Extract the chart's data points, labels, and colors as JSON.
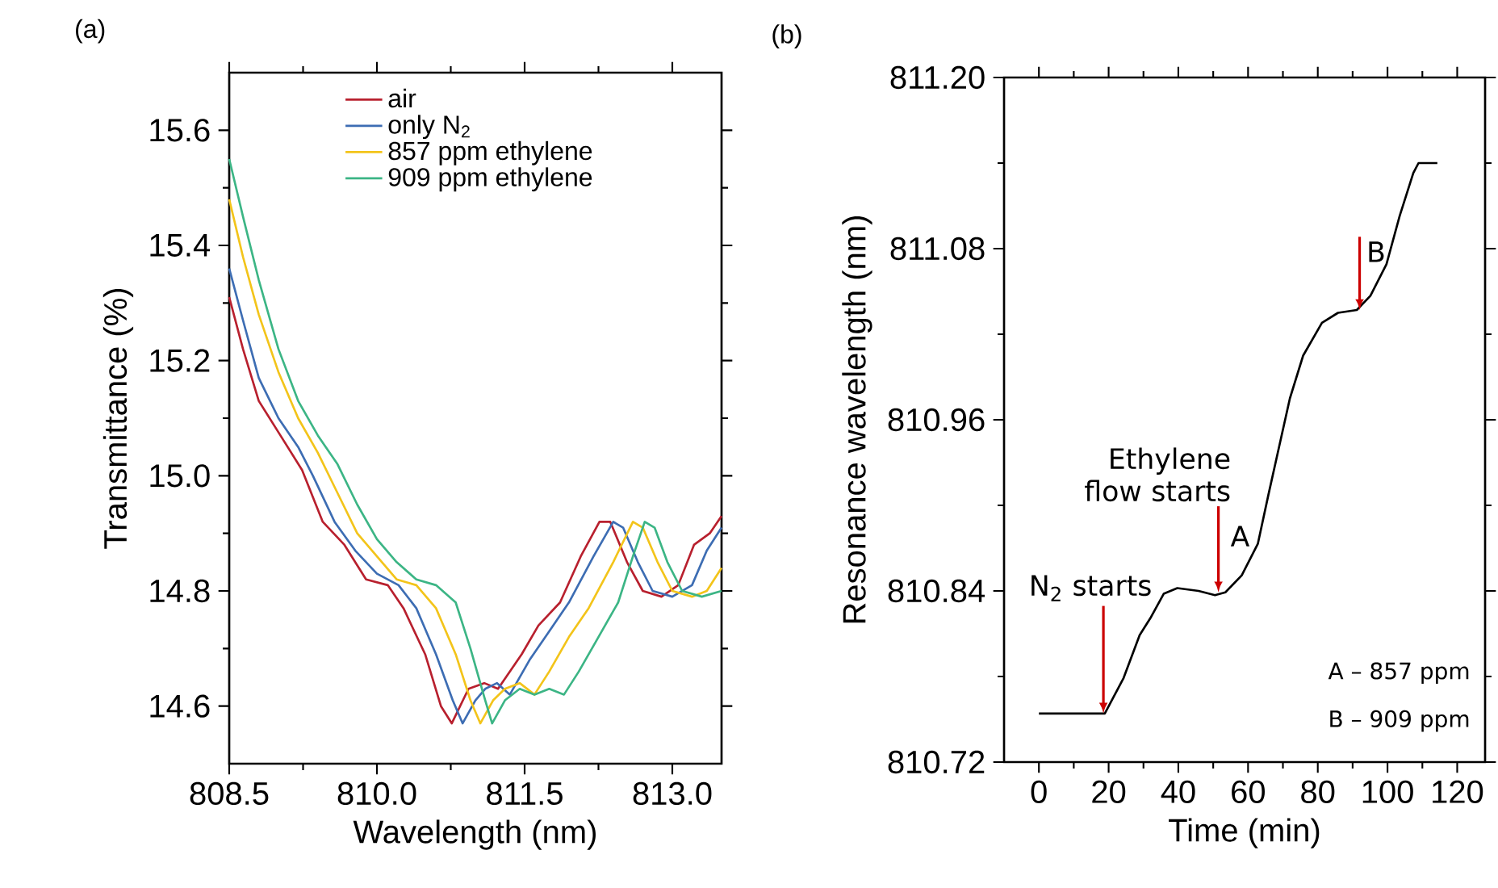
{
  "chart_data": [
    {
      "type": "line",
      "xlabel": "Wavelength (nm)",
      "ylabel": "Transmittance (%)",
      "legend": "top left",
      "xlim": [
        808.5,
        813.5
      ],
      "ylim": [
        14.5,
        15.7
      ],
      "xticks": [
        808.5,
        {
          "value": 810,
          "label": "810.0"
        },
        811.5,
        {
          "value": 813,
          "label": "813.0"
        }
      ],
      "yticks": [
        14.6,
        14.8,
        {
          "value": 15,
          "label": "15.0"
        },
        15.2,
        15.4,
        15.6
      ],
      "annotations": [
        "(a)"
      ],
      "series": [
        {
          "name": "air",
          "color": "#b8202e",
          "x": [
            808.5,
            808.64,
            808.8,
            809.02,
            809.24,
            809.45,
            809.67,
            809.89,
            810.11,
            810.27,
            810.49,
            810.65,
            810.76,
            810.93,
            811.09,
            811.23,
            811.47,
            811.64,
            811.86,
            812.07,
            812.26,
            812.37,
            812.54,
            812.7,
            812.89,
            813.06,
            813.22,
            813.38,
            813.5
          ],
          "values": [
            15.31,
            15.22,
            15.13,
            15.07,
            15.01,
            14.92,
            14.88,
            14.82,
            14.81,
            14.77,
            14.69,
            14.6,
            14.57,
            14.63,
            14.64,
            14.63,
            14.69,
            14.74,
            14.78,
            14.86,
            14.92,
            14.92,
            14.85,
            14.8,
            14.79,
            14.81,
            14.88,
            14.9,
            14.93
          ]
        },
        {
          "name": "only N$_{2}$",
          "color": "#3d6db3",
          "x": [
            808.5,
            808.64,
            808.8,
            809.0,
            809.2,
            809.35,
            809.57,
            809.78,
            810.0,
            810.22,
            810.4,
            810.6,
            810.77,
            810.87,
            811.0,
            811.1,
            811.22,
            811.35,
            811.55,
            811.75,
            811.95,
            812.2,
            812.4,
            812.5,
            812.65,
            812.8,
            813.0,
            813.2,
            813.35,
            813.5
          ],
          "values": [
            15.36,
            15.27,
            15.17,
            15.1,
            15.05,
            15.0,
            14.92,
            14.87,
            14.83,
            14.81,
            14.77,
            14.69,
            14.61,
            14.57,
            14.61,
            14.63,
            14.64,
            14.62,
            14.68,
            14.73,
            14.78,
            14.86,
            14.92,
            14.91,
            14.85,
            14.8,
            14.79,
            14.81,
            14.87,
            14.91
          ]
        },
        {
          "name": "857 ppm ethylene",
          "color": "#f3c41a",
          "x": [
            808.5,
            808.64,
            808.8,
            809.0,
            809.2,
            809.4,
            809.6,
            809.8,
            810.0,
            810.2,
            810.4,
            810.6,
            810.8,
            810.95,
            811.05,
            811.18,
            811.3,
            811.45,
            811.6,
            811.75,
            811.95,
            812.15,
            812.4,
            812.6,
            812.7,
            812.85,
            813.0,
            813.2,
            813.35,
            813.5
          ],
          "values": [
            15.48,
            15.38,
            15.28,
            15.18,
            15.1,
            15.04,
            14.97,
            14.9,
            14.86,
            14.82,
            14.81,
            14.77,
            14.69,
            14.61,
            14.57,
            14.61,
            14.63,
            14.64,
            14.62,
            14.66,
            14.72,
            14.77,
            14.85,
            14.92,
            14.91,
            14.85,
            14.8,
            14.79,
            14.8,
            14.84
          ]
        },
        {
          "name": "909 ppm ethylene",
          "color": "#3cb585",
          "x": [
            808.5,
            808.64,
            808.8,
            809.0,
            809.2,
            809.4,
            809.6,
            809.8,
            810.0,
            810.2,
            810.4,
            810.6,
            810.8,
            810.95,
            811.1,
            811.17,
            811.3,
            811.45,
            811.6,
            811.75,
            811.9,
            812.05,
            812.25,
            812.45,
            812.6,
            812.72,
            812.82,
            812.95,
            813.1,
            813.3,
            813.5
          ],
          "values": [
            15.55,
            15.45,
            15.34,
            15.22,
            15.13,
            15.07,
            15.02,
            14.95,
            14.89,
            14.85,
            14.82,
            14.81,
            14.78,
            14.7,
            14.61,
            14.57,
            14.61,
            14.63,
            14.62,
            14.63,
            14.62,
            14.66,
            14.72,
            14.78,
            14.86,
            14.92,
            14.91,
            14.85,
            14.8,
            14.79,
            14.8
          ]
        }
      ]
    },
    {
      "type": "line",
      "xlabel": "Time (min)",
      "ylabel": "Resonance wavelength (nm)",
      "xlim": [
        -10,
        128
      ],
      "ylim": [
        810.72,
        811.2
      ],
      "xticks": [
        0,
        20,
        40,
        60,
        80,
        100,
        120
      ],
      "yticks": [
        810.72,
        810.84,
        810.96,
        811.08,
        {
          "value": 811.2,
          "label": "811.20"
        }
      ],
      "annotations": [
        "(b)",
        "A",
        "A – 857 ppm",
        "B – 909 ppm",
        {
          "text": "N$_{2}$ starts",
          "x": 18.5,
          "y": 810.754
        },
        {
          "text": "Ethylene flow starts",
          "x": 51.5,
          "y": 810.839
        },
        {
          "text": "B",
          "x": 92,
          "y": 811.037
        }
      ],
      "series": [
        {
          "color": "#000000",
          "x": [
            0,
            18.9,
            24.3,
            28.9,
            32,
            35.8,
            39.7,
            45.8,
            50.5,
            53.5,
            58.2,
            62.8,
            65.8,
            68.9,
            72,
            75.8,
            81.2,
            85.8,
            91.2,
            95.1,
            99.7,
            103.5,
            107.4,
            108.9,
            114.3
          ],
          "values": [
            810.754,
            810.754,
            810.779,
            810.809,
            810.821,
            810.838,
            810.842,
            810.84,
            810.837,
            810.839,
            810.851,
            810.873,
            810.907,
            810.941,
            810.975,
            811.005,
            811.028,
            811.035,
            811.037,
            811.047,
            811.069,
            811.103,
            811.133,
            811.14,
            811.14
          ]
        }
      ]
    }
  ]
}
